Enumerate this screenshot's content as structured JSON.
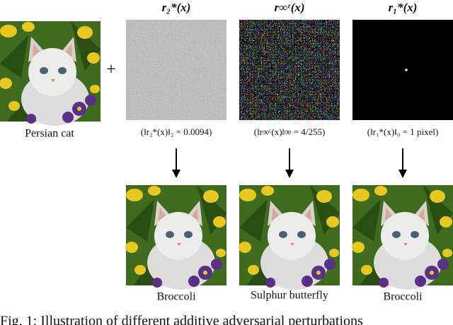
{
  "figure": {
    "source": {
      "label": "Persian cat"
    },
    "operator": "+",
    "columns": [
      {
        "header": "r₂*(x)",
        "norm": "(‖r₂*(x)‖₂ = 0.0094)",
        "prediction": "Broccoli"
      },
      {
        "header": "r∞ᵋ(x)",
        "norm": "(‖r∞ᵋ(x)‖∞ = 4/255)",
        "prediction": "Sulphur butterfly"
      },
      {
        "header": "r₁*(x)",
        "norm": "(‖r₁*(x)‖₀ = 1 pixel)",
        "prediction": "Broccoli"
      }
    ],
    "caption": "Fig. 1: Illustration of different additive adversarial perturbations"
  }
}
